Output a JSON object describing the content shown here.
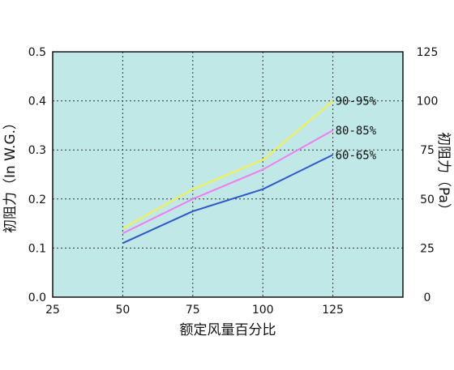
{
  "chart_data": {
    "type": "line",
    "xlabel": "额定风量百分比",
    "ylabel_left": "初阻力（In W.G.）",
    "ylabel_right": "初阻力（Pa）",
    "x_ticks": [
      25,
      50,
      75,
      100,
      125
    ],
    "y_left_ticks": [
      "0.0",
      "0.1",
      "0.2",
      "0.3",
      "0.4",
      "0.5"
    ],
    "y_right_ticks": [
      "0",
      "25",
      "50",
      "75",
      "100",
      "125"
    ],
    "xlim": [
      25,
      150
    ],
    "ylim_left": [
      0,
      0.5
    ],
    "ylim_right": [
      0,
      125
    ],
    "grid": true,
    "background": "#bfe8e6",
    "series": [
      {
        "name": "90-95%",
        "color": "#f2f24a",
        "x": [
          50,
          75,
          100,
          125
        ],
        "y": [
          0.14,
          0.22,
          0.28,
          0.4
        ]
      },
      {
        "name": "80-85%",
        "color": "#f07cf0",
        "x": [
          50,
          75,
          100,
          125
        ],
        "y": [
          0.13,
          0.2,
          0.26,
          0.34
        ]
      },
      {
        "name": "60-65%",
        "color": "#2f59c8",
        "x": [
          50,
          75,
          100,
          125
        ],
        "y": [
          0.11,
          0.175,
          0.22,
          0.29
        ]
      }
    ]
  }
}
